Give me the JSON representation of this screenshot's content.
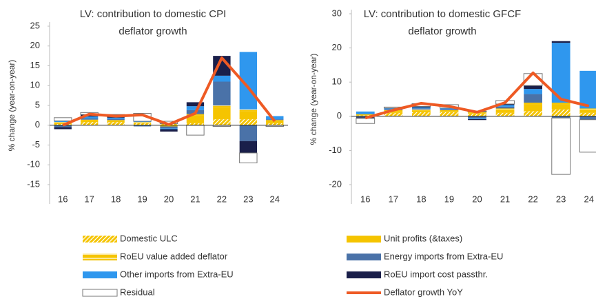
{
  "chart_data": [
    {
      "type": "bar",
      "title": "LV: contribution to domestic CPI deflator growth",
      "y_label": "% change (year-on-year)",
      "categories": [
        "16",
        "17",
        "18",
        "19",
        "20",
        "21",
        "22",
        "23",
        "24"
      ],
      "ylim": [
        -15,
        25
      ],
      "yticks": [
        -15,
        -10,
        -5,
        0,
        5,
        10,
        15,
        20,
        25
      ],
      "grid": false,
      "series": [
        {
          "name": "Domestic ULC",
          "color": "#f5c400",
          "pattern": "diagonal",
          "values": [
            0.3,
            0.8,
            0.8,
            0.5,
            0.3,
            0.5,
            1.5,
            1.5,
            0.5
          ]
        },
        {
          "name": "Unit profits (&taxes)",
          "color": "#f5c400",
          "values": [
            0,
            0.3,
            0.3,
            0.1,
            -0.3,
            2,
            3,
            2,
            0.5
          ]
        },
        {
          "name": "RoEU value added deflator",
          "color": "#f5c400",
          "pattern": "horizontal",
          "values": [
            0.5,
            0.3,
            0.2,
            0.2,
            0.1,
            0.3,
            0.5,
            0.5,
            0.3
          ]
        },
        {
          "name": "Energy imports from Extra-EU",
          "color": "#4a72a8",
          "values": [
            -0.5,
            0.3,
            0.3,
            -0.3,
            -0.5,
            1,
            6,
            -4,
            0.2
          ]
        },
        {
          "name": "Other imports from Extra-EU",
          "color": "#2f97ee",
          "values": [
            0.3,
            0.5,
            0.3,
            0.2,
            -0.2,
            1,
            1.5,
            14.5,
            0.8
          ]
        },
        {
          "name": "RoEU import cost passthr.",
          "color": "#1a1f4a",
          "values": [
            -0.5,
            0.5,
            0.5,
            0,
            -0.6,
            1,
            5,
            -3,
            0
          ]
        },
        {
          "name": "Residual",
          "color": "#ffffff",
          "values": [
            0.8,
            0.5,
            0.3,
            2,
            0.6,
            -2.5,
            -0.3,
            -2.5,
            -0.3
          ]
        },
        {
          "name": "Deflator growth YoY",
          "color": "#ee5a24",
          "type": "line",
          "values": [
            0,
            2.8,
            2.3,
            2.6,
            0.2,
            3,
            17,
            9.5,
            1
          ]
        }
      ]
    },
    {
      "type": "bar",
      "title": "LV: contribution to domestic GFCF deflator growth",
      "y_label": "% change (year-on-year)",
      "categories": [
        "16",
        "17",
        "18",
        "19",
        "20",
        "21",
        "22",
        "23",
        "24"
      ],
      "ylim": [
        -20,
        30
      ],
      "yticks": [
        -20,
        -10,
        0,
        10,
        20,
        30
      ],
      "grid": false,
      "series": [
        {
          "name": "Domestic ULC",
          "color": "#f5c400",
          "pattern": "diagonal",
          "values": [
            0.3,
            1,
            1.2,
            1.2,
            0.8,
            1,
            1.5,
            2,
            1
          ]
        },
        {
          "name": "Unit profits (&taxes)",
          "color": "#f5c400",
          "values": [
            0,
            0.5,
            0.5,
            0.3,
            0.3,
            1,
            2,
            1.5,
            1
          ]
        },
        {
          "name": "RoEU value added deflator",
          "color": "#f5c400",
          "pattern": "horizontal",
          "values": [
            0.3,
            0.3,
            0.3,
            0.3,
            0.2,
            0.3,
            0.5,
            0.5,
            0.3
          ]
        },
        {
          "name": "Energy imports from Extra-EU",
          "color": "#4a72a8",
          "values": [
            -0.3,
            0.3,
            0.3,
            0.3,
            -0.5,
            0.5,
            2.5,
            -0.5,
            -1
          ]
        },
        {
          "name": "Other imports from Extra-EU",
          "color": "#2f97ee",
          "values": [
            0.8,
            0.3,
            0.3,
            0.3,
            -0.3,
            0.5,
            1.5,
            17.5,
            11
          ]
        },
        {
          "name": "RoEU import cost passthr.",
          "color": "#1a1f4a",
          "values": [
            -0.3,
            0,
            0.3,
            0,
            -0.3,
            0.3,
            1,
            0.5,
            0
          ]
        },
        {
          "name": "Residual",
          "color": "#ffffff",
          "values": [
            -1.5,
            0.3,
            0.8,
            1,
            0.2,
            1,
            3.5,
            -16.5,
            -9.5
          ]
        },
        {
          "name": "Deflator growth YoY",
          "color": "#ee5a24",
          "type": "line",
          "values": [
            -0.5,
            1.8,
            3.8,
            2.9,
            1.2,
            4,
            12.7,
            5,
            3
          ]
        }
      ]
    }
  ]
}
